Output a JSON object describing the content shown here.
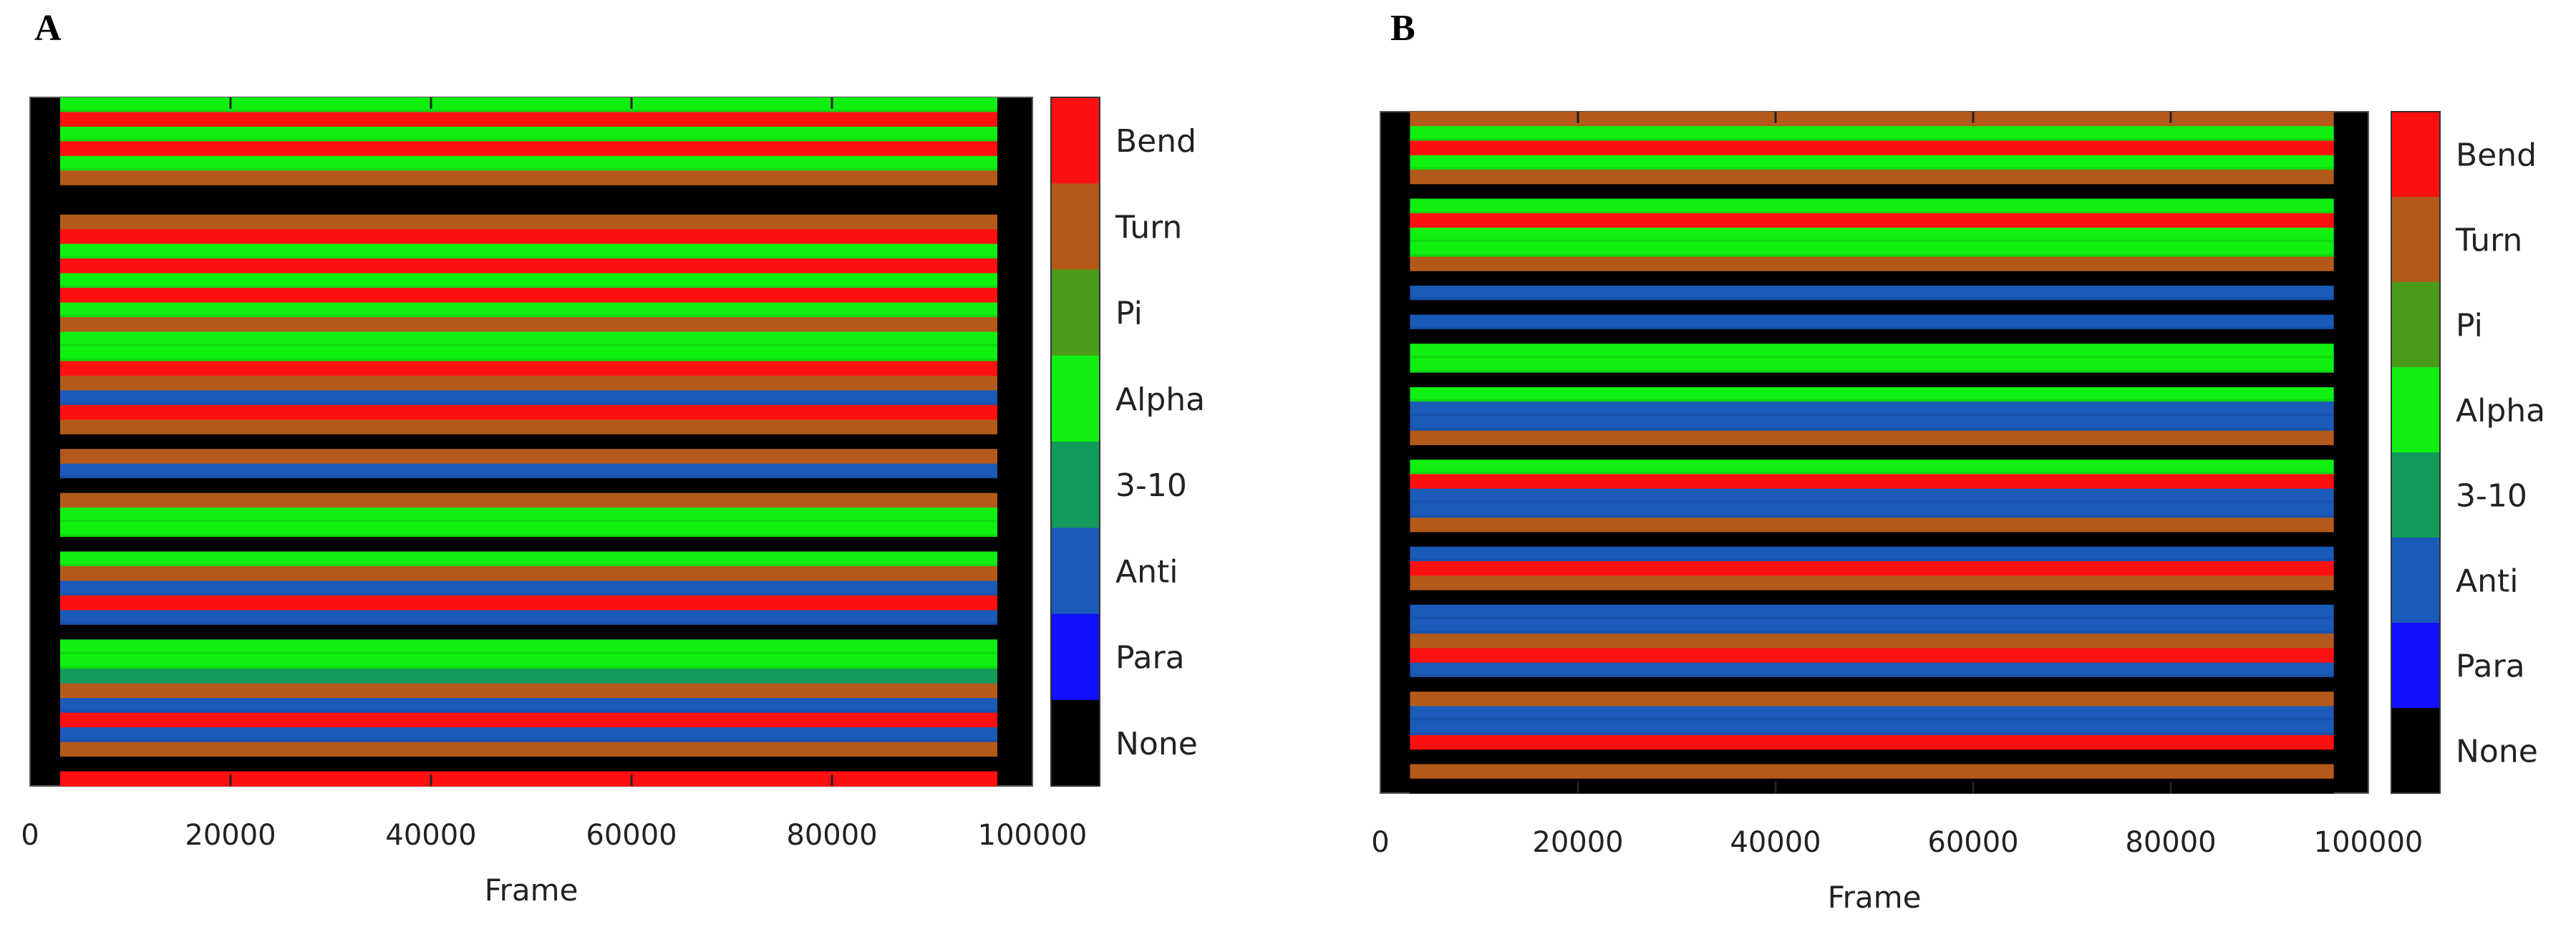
{
  "colors": {
    "Bend": "#ff1010",
    "Turn": "#b35a1a",
    "Pi": "#4a9c18",
    "Alpha": "#10f010",
    "3-10": "#129a5a",
    "Anti": "#1a5ab8",
    "Para": "#1010ff",
    "None": "#000000"
  },
  "chart_data": [
    {
      "type": "heatmap",
      "panel": "A",
      "xlabel": "Frame",
      "ylabel": "",
      "xlim": [
        0,
        100000
      ],
      "x_ticks": [
        "0",
        "20000",
        "40000",
        "60000",
        "80000",
        "100000"
      ],
      "x_tick_values": [
        0,
        20000,
        40000,
        60000,
        80000,
        100000
      ],
      "legend": [
        "Bend",
        "Turn",
        "Pi",
        "Alpha",
        "3-10",
        "Anti",
        "Para",
        "None"
      ],
      "row_pattern": [
        "Alpha",
        "Bend",
        "Alpha",
        "Bend",
        "Alpha",
        "Turn",
        "None",
        "None",
        "Turn",
        "Bend",
        "Alpha",
        "Bend",
        "Alpha",
        "Bend",
        "Alpha",
        "Turn",
        "Alpha",
        "Alpha",
        "Bend",
        "Turn",
        "Anti",
        "Bend",
        "Turn",
        "None",
        "Turn",
        "Anti",
        "None",
        "Turn",
        "Alpha",
        "Alpha",
        "None",
        "Alpha",
        "Turn",
        "Anti",
        "Bend",
        "Anti",
        "None",
        "Alpha",
        "Alpha",
        "3-10",
        "Turn",
        "Anti",
        "Bend",
        "Anti",
        "Turn",
        "None",
        "Bend"
      ]
    },
    {
      "type": "heatmap",
      "panel": "B",
      "xlabel": "Frame",
      "ylabel": "",
      "xlim": [
        0,
        100000
      ],
      "x_ticks": [
        "0",
        "20000",
        "40000",
        "60000",
        "80000",
        "100000"
      ],
      "x_tick_values": [
        0,
        20000,
        40000,
        60000,
        80000,
        100000
      ],
      "legend": [
        "Bend",
        "Turn",
        "Pi",
        "Alpha",
        "3-10",
        "Anti",
        "Para",
        "None"
      ],
      "row_pattern": [
        "Turn",
        "Alpha",
        "Bend",
        "Alpha",
        "Turn",
        "None",
        "Alpha",
        "Bend",
        "Alpha",
        "Alpha",
        "Turn",
        "None",
        "Anti",
        "None",
        "Anti",
        "None",
        "Alpha",
        "Alpha",
        "None",
        "Alpha",
        "Anti",
        "Anti",
        "Turn",
        "None",
        "Alpha",
        "Bend",
        "Anti",
        "Anti",
        "Turn",
        "None",
        "Anti",
        "Bend",
        "Turn",
        "None",
        "Anti",
        "Anti",
        "Turn",
        "Bend",
        "Anti",
        "None",
        "Turn",
        "Anti",
        "Anti",
        "Bend",
        "None",
        "Turn",
        "None"
      ]
    }
  ],
  "panels": {
    "a": {
      "letter": "A"
    },
    "b": {
      "letter": "B"
    }
  }
}
